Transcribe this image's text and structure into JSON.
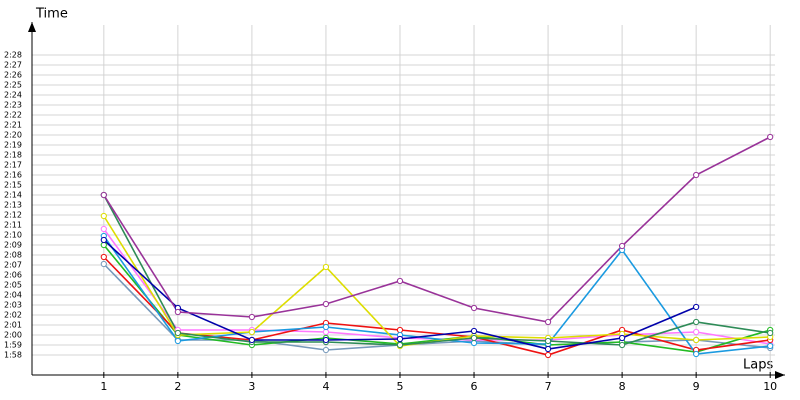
{
  "chart_data": {
    "type": "line",
    "y_title": "Time",
    "x_title": "Laps",
    "x": [
      1,
      2,
      3,
      4,
      5,
      6,
      7,
      8,
      9,
      10
    ],
    "xlim": [
      0.03,
      10.2
    ],
    "xticks": [
      1,
      2,
      3,
      4,
      5,
      6,
      7,
      8,
      9,
      10
    ],
    "ylim": [
      116,
      150
    ],
    "yticks": [
      {
        "value": 118,
        "label": "1:58"
      },
      {
        "value": 119,
        "label": "1:59"
      },
      {
        "value": 120,
        "label": "2:00"
      },
      {
        "value": 121,
        "label": "2:01"
      },
      {
        "value": 122,
        "label": "2:02"
      },
      {
        "value": 123,
        "label": "2:03"
      },
      {
        "value": 124,
        "label": "2:04"
      },
      {
        "value": 125,
        "label": "2:05"
      },
      {
        "value": 126,
        "label": "2:06"
      },
      {
        "value": 127,
        "label": "2:07"
      },
      {
        "value": 128,
        "label": "2:08"
      },
      {
        "value": 129,
        "label": "2:09"
      },
      {
        "value": 130,
        "label": "2:10"
      },
      {
        "value": 131,
        "label": "2:11"
      },
      {
        "value": 132,
        "label": "2:12"
      },
      {
        "value": 133,
        "label": "2:13"
      },
      {
        "value": 134,
        "label": "2:14"
      },
      {
        "value": 135,
        "label": "2:15"
      },
      {
        "value": 136,
        "label": "2:16"
      },
      {
        "value": 137,
        "label": "2:17"
      },
      {
        "value": 138,
        "label": "2:18"
      },
      {
        "value": 139,
        "label": "2:19"
      },
      {
        "value": 140,
        "label": "2:20"
      },
      {
        "value": 141,
        "label": "2:21"
      },
      {
        "value": 142,
        "label": "2:22"
      },
      {
        "value": 143,
        "label": "2:23"
      },
      {
        "value": 144,
        "label": "2:24"
      },
      {
        "value": 145,
        "label": "2:25"
      },
      {
        "value": 146,
        "label": "2:26"
      },
      {
        "value": 147,
        "label": "2:27"
      },
      {
        "value": 148,
        "label": "2:28"
      }
    ],
    "grid": true,
    "series": [
      {
        "color": "#7799bb",
        "values": [
          127.1,
          119.5,
          119.5,
          118.5,
          119,
          119.4,
          119,
          119.3,
          119.5,
          118.7
        ]
      },
      {
        "color": "#ff77ff",
        "values": [
          130.6,
          120.5,
          120.5,
          120.3,
          119.7,
          119.5,
          119.5,
          120,
          120.3,
          119.1
        ]
      },
      {
        "color": "#22bb22",
        "values": [
          129,
          120,
          119,
          119.7,
          119.1,
          119.9,
          119,
          119.3,
          118.3,
          120.5
        ]
      },
      {
        "color": "#ee1111",
        "values": [
          127.8,
          120.2,
          119.5,
          121.2,
          120.5,
          119.8,
          118,
          120.5,
          118.5,
          119.5
        ]
      },
      {
        "color": "#1a9ae0",
        "values": [
          129.9,
          119.4,
          120.3,
          120.8,
          120,
          119.2,
          119.1,
          128.5,
          118.1,
          118.9
        ]
      },
      {
        "color": "#dddd00",
        "values": [
          131.9,
          120,
          120.3,
          126.8,
          118.9,
          119.9,
          119.7,
          120.1,
          119.5,
          119.8
        ]
      },
      {
        "color": "#2e8b57",
        "values": [
          134,
          120.2,
          119.3,
          119.3,
          119,
          119.7,
          119.4,
          119,
          121.3,
          120.2
        ]
      },
      {
        "color": "#0000aa",
        "values": [
          129.5,
          122.7,
          119.5,
          119.5,
          119.6,
          120.4,
          118.6,
          119.7,
          122.8,
          null
        ]
      },
      {
        "color": "#993399",
        "values": [
          134,
          122.3,
          121.8,
          123.1,
          125.4,
          122.7,
          121.3,
          128.9,
          136,
          139.8
        ]
      }
    ]
  }
}
